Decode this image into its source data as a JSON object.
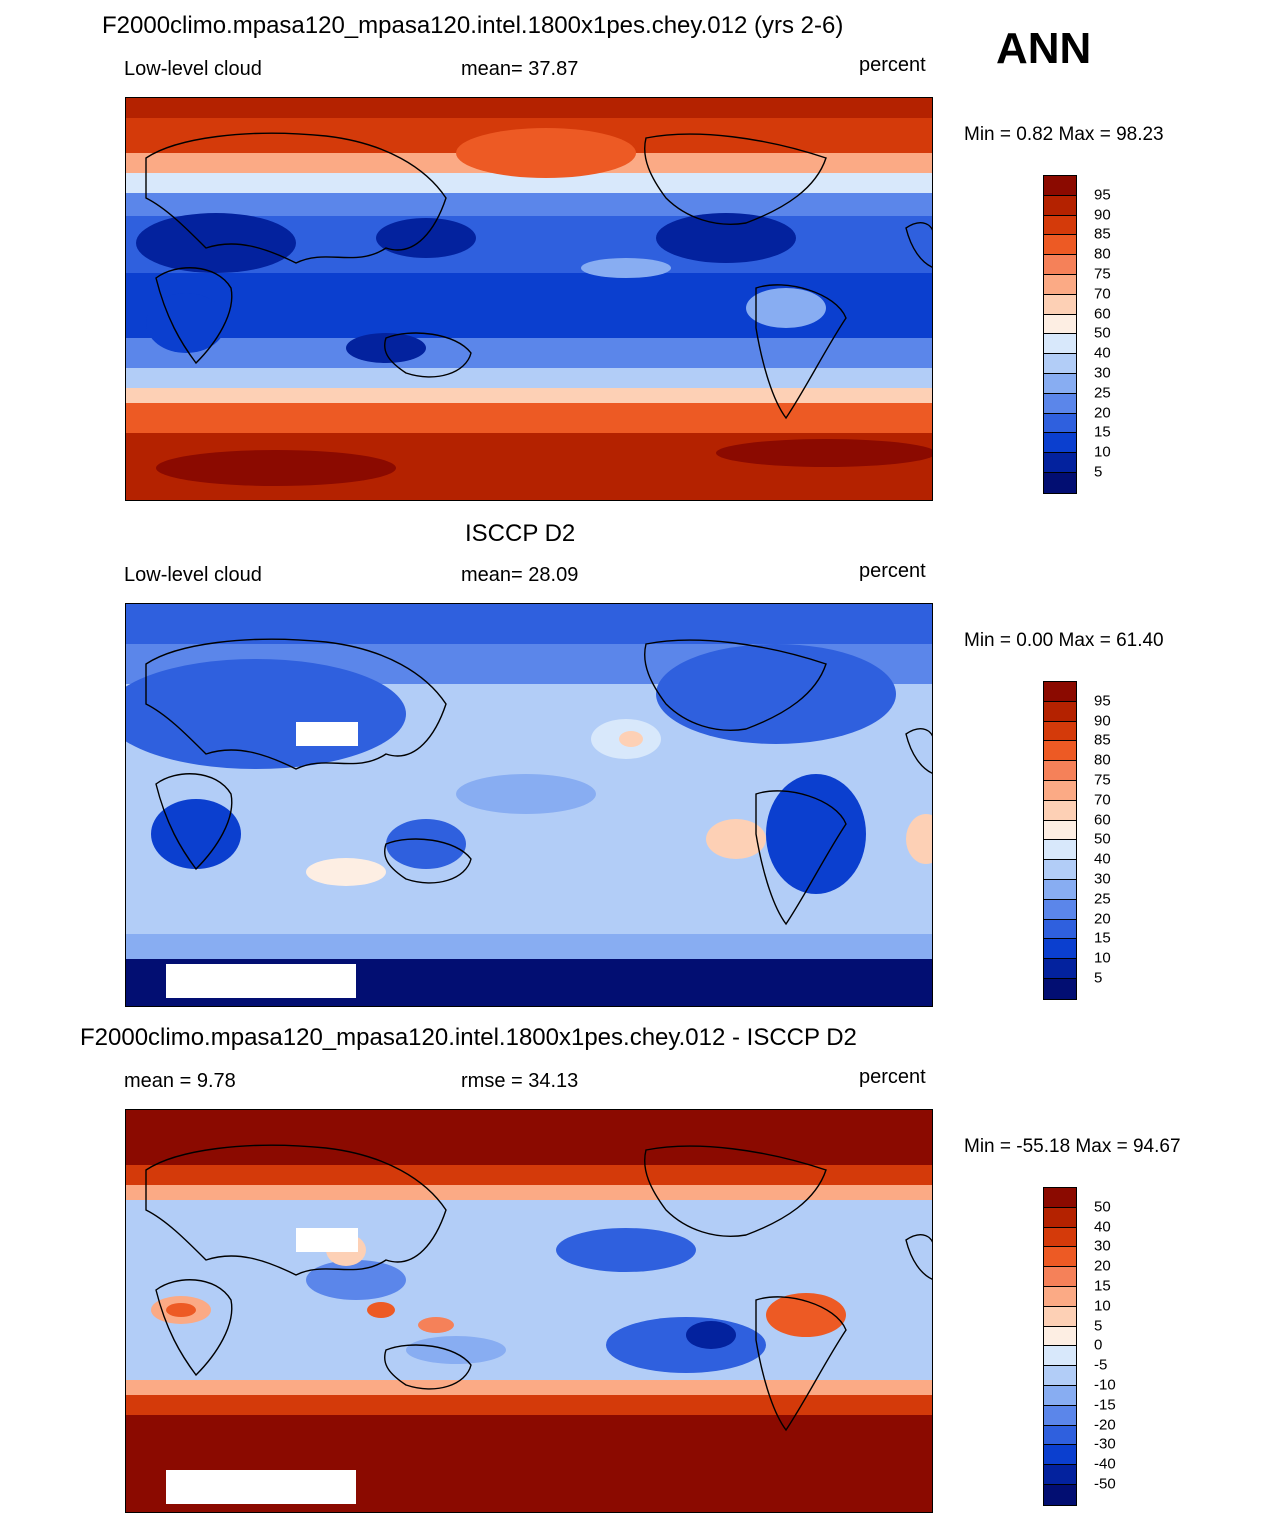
{
  "header": {
    "season": "ANN"
  },
  "panels": [
    {
      "title": "F2000climo.mpasa120_mpasa120.intel.1800x1pes.chey.012 (yrs 2-6)",
      "left_label": "Low-level cloud",
      "center_label": "mean=  37.87",
      "units": "percent",
      "minmax": "Min =   0.82 Max =  98.23",
      "colorbar_labels": [
        "95",
        "90",
        "85",
        "80",
        "75",
        "70",
        "60",
        "50",
        "40",
        "30",
        "25",
        "20",
        "15",
        "10",
        "5"
      ],
      "colorbar_colors": [
        "#8b0a00",
        "#b42200",
        "#d43a0a",
        "#ed5a24",
        "#f58159",
        "#fbaa85",
        "#fdd0b5",
        "#fdeee3",
        "#d8e8fb",
        "#b2cdf7",
        "#88adf2",
        "#5b86ea",
        "#2f60de",
        "#0b3fcf",
        "#03229e",
        "#020e72"
      ]
    },
    {
      "title": "ISCCP D2",
      "left_label": "Low-level cloud",
      "center_label": "mean=  28.09",
      "units": "percent",
      "minmax": "Min =   0.00 Max =  61.40",
      "colorbar_labels": [
        "95",
        "90",
        "85",
        "80",
        "75",
        "70",
        "60",
        "50",
        "40",
        "30",
        "25",
        "20",
        "15",
        "10",
        "5"
      ],
      "colorbar_colors": [
        "#8b0a00",
        "#b42200",
        "#d43a0a",
        "#ed5a24",
        "#f58159",
        "#fbaa85",
        "#fdd0b5",
        "#fdeee3",
        "#d8e8fb",
        "#b2cdf7",
        "#88adf2",
        "#5b86ea",
        "#2f60de",
        "#0b3fcf",
        "#03229e",
        "#020e72"
      ]
    },
    {
      "title": "F2000climo.mpasa120_mpasa120.intel.1800x1pes.chey.012 - ISCCP D2",
      "left_label": "mean =   9.78",
      "center_label": "rmse =  34.13",
      "units": "percent",
      "minmax": "Min = -55.18 Max =  94.67",
      "colorbar_labels": [
        "50",
        "40",
        "30",
        "20",
        "15",
        "10",
        "5",
        "0",
        "-5",
        "-10",
        "-15",
        "-20",
        "-30",
        "-40",
        "-50"
      ],
      "colorbar_colors": [
        "#8b0a00",
        "#b42200",
        "#d43a0a",
        "#ed5a24",
        "#f58159",
        "#fbaa85",
        "#fdd0b5",
        "#fdeee3",
        "#d8e8fb",
        "#b2cdf7",
        "#88adf2",
        "#5b86ea",
        "#2f60de",
        "#0b3fcf",
        "#03229e",
        "#020e72"
      ]
    }
  ],
  "map_colors": {
    "ocean_high": "#b42200",
    "ocean_mid": "#ed5a24",
    "light_blue": "#b2cdf7",
    "mid_blue": "#5b86ea",
    "blue": "#2f60de",
    "dark_blue": "#0b3fcf",
    "navy": "#020e72",
    "peach": "#fdd0b5",
    "land_line": "#000000",
    "missing": "#ffffff"
  }
}
